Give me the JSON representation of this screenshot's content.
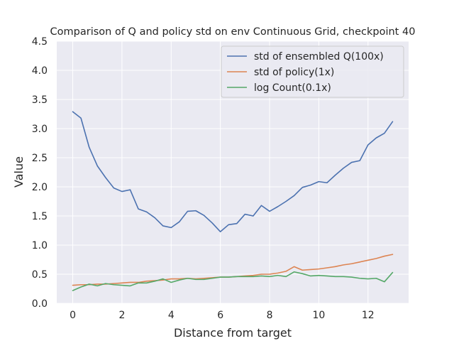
{
  "chart_data": {
    "type": "line",
    "title": "Comparison of Q and policy std on env Continuous Grid, checkpoint 40",
    "xlabel": "Distance from target",
    "ylabel": "Value",
    "xlim": [
      -0.65,
      13.65
    ],
    "ylim": [
      0,
      4.5
    ],
    "xticks": [
      0,
      2,
      4,
      6,
      8,
      10,
      12
    ],
    "xtick_labels": [
      "0",
      "2",
      "4",
      "6",
      "8",
      "10",
      "12"
    ],
    "yticks": [
      0,
      0.5,
      1.0,
      1.5,
      2.0,
      2.5,
      3.0,
      3.5,
      4.0,
      4.5
    ],
    "ytick_labels": [
      "0.0",
      "0.5",
      "1.0",
      "1.5",
      "2.0",
      "2.5",
      "3.0",
      "3.5",
      "4.0",
      "4.5"
    ],
    "grid": true,
    "legend_position": "top-right",
    "x": [
      0,
      0.333,
      0.667,
      1,
      1.333,
      1.667,
      2,
      2.333,
      2.667,
      3,
      3.333,
      3.667,
      4,
      4.333,
      4.667,
      5,
      5.333,
      5.667,
      6,
      6.333,
      6.667,
      7,
      7.333,
      7.667,
      8,
      8.333,
      8.667,
      9,
      9.333,
      9.667,
      10,
      10.333,
      10.667,
      11,
      11.333,
      11.667,
      12,
      12.333,
      12.667,
      13
    ],
    "series": [
      {
        "name": "std of ensembled Q(100x)",
        "color": "#4c72b0",
        "values": [
          3.29,
          3.18,
          2.68,
          2.36,
          2.16,
          1.98,
          1.92,
          1.95,
          1.62,
          1.57,
          1.47,
          1.33,
          1.3,
          1.4,
          1.58,
          1.59,
          1.51,
          1.38,
          1.23,
          1.35,
          1.37,
          1.53,
          1.5,
          1.68,
          1.58,
          1.66,
          1.75,
          1.85,
          1.99,
          2.03,
          2.09,
          2.07,
          2.2,
          2.32,
          2.42,
          2.45,
          2.72,
          2.84,
          2.92,
          3.12
        ]
      },
      {
        "name": "std of policy(1x)",
        "color": "#dd8452",
        "values": [
          0.31,
          0.32,
          0.32,
          0.33,
          0.33,
          0.34,
          0.35,
          0.36,
          0.36,
          0.38,
          0.39,
          0.4,
          0.42,
          0.42,
          0.43,
          0.42,
          0.43,
          0.44,
          0.45,
          0.45,
          0.46,
          0.47,
          0.48,
          0.5,
          0.5,
          0.52,
          0.55,
          0.63,
          0.57,
          0.58,
          0.59,
          0.61,
          0.63,
          0.66,
          0.68,
          0.71,
          0.74,
          0.77,
          0.81,
          0.84
        ]
      },
      {
        "name": "log Count(0.1x)",
        "color": "#55a868",
        "values": [
          0.22,
          0.28,
          0.33,
          0.3,
          0.34,
          0.32,
          0.31,
          0.3,
          0.35,
          0.35,
          0.38,
          0.42,
          0.36,
          0.4,
          0.43,
          0.41,
          0.41,
          0.43,
          0.45,
          0.45,
          0.46,
          0.46,
          0.46,
          0.47,
          0.46,
          0.48,
          0.46,
          0.54,
          0.51,
          0.47,
          0.48,
          0.47,
          0.46,
          0.46,
          0.45,
          0.43,
          0.42,
          0.43,
          0.37,
          0.53
        ]
      }
    ]
  }
}
